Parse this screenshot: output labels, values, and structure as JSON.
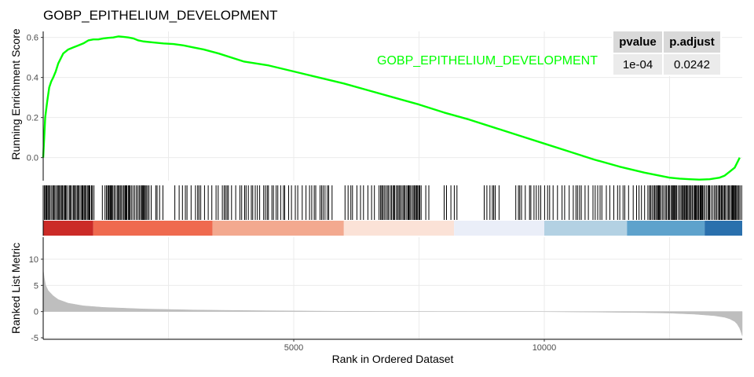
{
  "chart_data": {
    "type": "line",
    "title": "GOBP_EPITHELIUM_DEVELOPMENT",
    "series_label": "GOBP_EPITHELIUM_DEVELOPMENT",
    "series_color": "#00ff00",
    "xlabel": "Rank in Ordered Dataset",
    "xlim": [
      0,
      13950
    ],
    "x_ticks": [
      "5000",
      "10000"
    ],
    "x_tick_values": [
      5000,
      10000
    ],
    "x_grid_values": [
      2500,
      5000,
      7500,
      10000,
      12500
    ],
    "panels": {
      "enrichment": {
        "ylabel": "Running Enrichment Score",
        "ylim": [
          -0.115,
          0.63
        ],
        "y_ticks": [
          "0.0",
          "0.2",
          "0.4",
          "0.6"
        ],
        "y_tick_values": [
          0.0,
          0.2,
          0.4,
          0.6
        ],
        "x": [
          0,
          20,
          40,
          80,
          120,
          160,
          200,
          250,
          300,
          400,
          500,
          600,
          700,
          800,
          900,
          1000,
          1100,
          1200,
          1300,
          1400,
          1500,
          1600,
          1700,
          1800,
          1900,
          2000,
          2200,
          2400,
          2600,
          2800,
          3000,
          3200,
          3500,
          4000,
          4500,
          5000,
          5500,
          6000,
          6500,
          7000,
          7500,
          8000,
          8500,
          9000,
          9500,
          10000,
          10500,
          11000,
          11500,
          12000,
          12500,
          12700,
          12900,
          13100,
          13300,
          13500,
          13600,
          13700,
          13800,
          13900
        ],
        "values": [
          0.0,
          0.1,
          0.2,
          0.28,
          0.35,
          0.38,
          0.4,
          0.43,
          0.47,
          0.52,
          0.54,
          0.55,
          0.56,
          0.57,
          0.585,
          0.59,
          0.59,
          0.595,
          0.598,
          0.6,
          0.605,
          0.603,
          0.6,
          0.595,
          0.585,
          0.58,
          0.575,
          0.57,
          0.567,
          0.56,
          0.55,
          0.54,
          0.52,
          0.48,
          0.46,
          0.43,
          0.4,
          0.37,
          0.335,
          0.3,
          0.265,
          0.225,
          0.19,
          0.15,
          0.11,
          0.07,
          0.03,
          -0.01,
          -0.045,
          -0.075,
          -0.1,
          -0.105,
          -0.108,
          -0.11,
          -0.108,
          -0.1,
          -0.09,
          -0.07,
          -0.05,
          0.0
        ]
      },
      "hits": {
        "dense_ranges": [
          [
            0,
            1000
          ],
          [
            1200,
            2100
          ],
          [
            6700,
            7500
          ],
          [
            12100,
            13950
          ]
        ],
        "sparse_gaps": [
          [
            1020,
            1150
          ],
          [
            2400,
            2600
          ],
          [
            5800,
            6000
          ],
          [
            7700,
            8000
          ],
          [
            8300,
            8800
          ],
          [
            9100,
            9400
          ]
        ],
        "color_bands": [
          {
            "from": 0,
            "to": 1000,
            "color": "#cb2b27"
          },
          {
            "from": 1000,
            "to": 3380,
            "color": "#ef6a4f"
          },
          {
            "from": 3380,
            "to": 6000,
            "color": "#f3a98f"
          },
          {
            "from": 6000,
            "to": 8200,
            "color": "#fbe2d7"
          },
          {
            "from": 8200,
            "to": 10000,
            "color": "#eaeef8"
          },
          {
            "from": 10000,
            "to": 11650,
            "color": "#b3d1e3"
          },
          {
            "from": 11650,
            "to": 13200,
            "color": "#5ea2cc"
          },
          {
            "from": 13200,
            "to": 13950,
            "color": "#2a70ad"
          }
        ]
      },
      "ranked_metric": {
        "ylabel": "Ranked List Metric",
        "ylim": [
          -5.3,
          14.2
        ],
        "y_ticks": [
          "-5",
          "0",
          "5",
          "10"
        ],
        "y_tick_values": [
          -5,
          0,
          5,
          10
        ],
        "x": [
          0,
          20,
          50,
          100,
          200,
          300,
          500,
          800,
          1200,
          2000,
          3000,
          4000,
          5000,
          6000,
          7000,
          8000,
          8800,
          9000,
          9700,
          10000,
          11000,
          12000,
          12500,
          13000,
          13400,
          13600,
          13700,
          13800,
          13850,
          13900,
          13930,
          13950
        ],
        "values": [
          8.0,
          6.5,
          5.0,
          4.0,
          3.0,
          2.3,
          1.6,
          1.1,
          0.8,
          0.5,
          0.3,
          0.2,
          0.12,
          0.06,
          0.02,
          0.0,
          -0.01,
          0.0,
          0.0,
          -0.02,
          -0.1,
          -0.2,
          -0.3,
          -0.5,
          -0.8,
          -1.1,
          -1.4,
          -1.9,
          -2.4,
          -3.2,
          -4.0,
          -4.6
        ]
      }
    }
  },
  "stats_table": {
    "headers": [
      "pvalue",
      "p.adjust"
    ],
    "row": [
      "1e-04",
      "0.0242"
    ]
  }
}
